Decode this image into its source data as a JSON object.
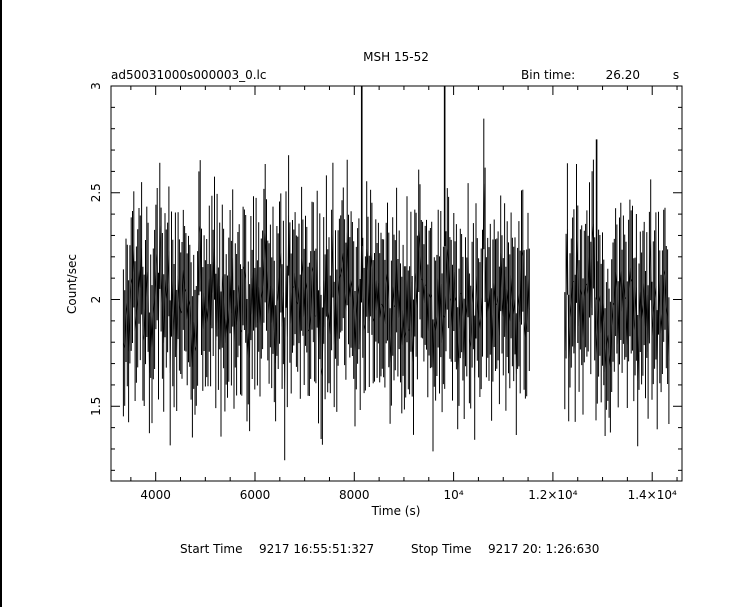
{
  "chart_data": {
    "type": "line",
    "title": "MSH 15-52",
    "file_label": "ad50031000s000003_0.lc",
    "bin_time_label": "Bin time:",
    "bin_time_value": "26.20",
    "bin_time_unit": "s",
    "xlabel": "Time (s)",
    "ylabel": "Count/sec",
    "xlim": [
      3100,
      14600
    ],
    "ylim": [
      1.15,
      3.0
    ],
    "x_ticks": [
      {
        "value": 4000,
        "label": "4000"
      },
      {
        "value": 6000,
        "label": "6000"
      },
      {
        "value": 8000,
        "label": "8000"
      },
      {
        "value": 10000,
        "label": "10⁴"
      },
      {
        "value": 12000,
        "label": "1.2×10⁴"
      },
      {
        "value": 14000,
        "label": "1.4×10⁴"
      }
    ],
    "y_ticks": [
      {
        "value": 1.5,
        "label": "1.5"
      },
      {
        "value": 2.0,
        "label": "2"
      },
      {
        "value": 2.5,
        "label": "2.5"
      },
      {
        "value": 3.0,
        "label": "3"
      }
    ],
    "bin_width": 26.2,
    "typical_error": 0.3,
    "series": [
      {
        "x_start": 3350,
        "x_end": 11540,
        "rate_mean": 2.0,
        "rate_spread": 0.22
      },
      {
        "x_start": 12240,
        "x_end": 14360,
        "rate_mean": 2.0,
        "rate_spread": 0.22
      }
    ],
    "spikes": [
      {
        "x": 8150,
        "y": 3.0
      },
      {
        "x": 9820,
        "y": 3.0
      },
      {
        "x": 12880,
        "y": 2.75
      }
    ],
    "grid": false
  },
  "footer": {
    "start_label": "Start Time",
    "start_value": "9217 16:55:51:327",
    "stop_label": "Stop Time",
    "stop_value": "9217 20: 1:26:630"
  }
}
